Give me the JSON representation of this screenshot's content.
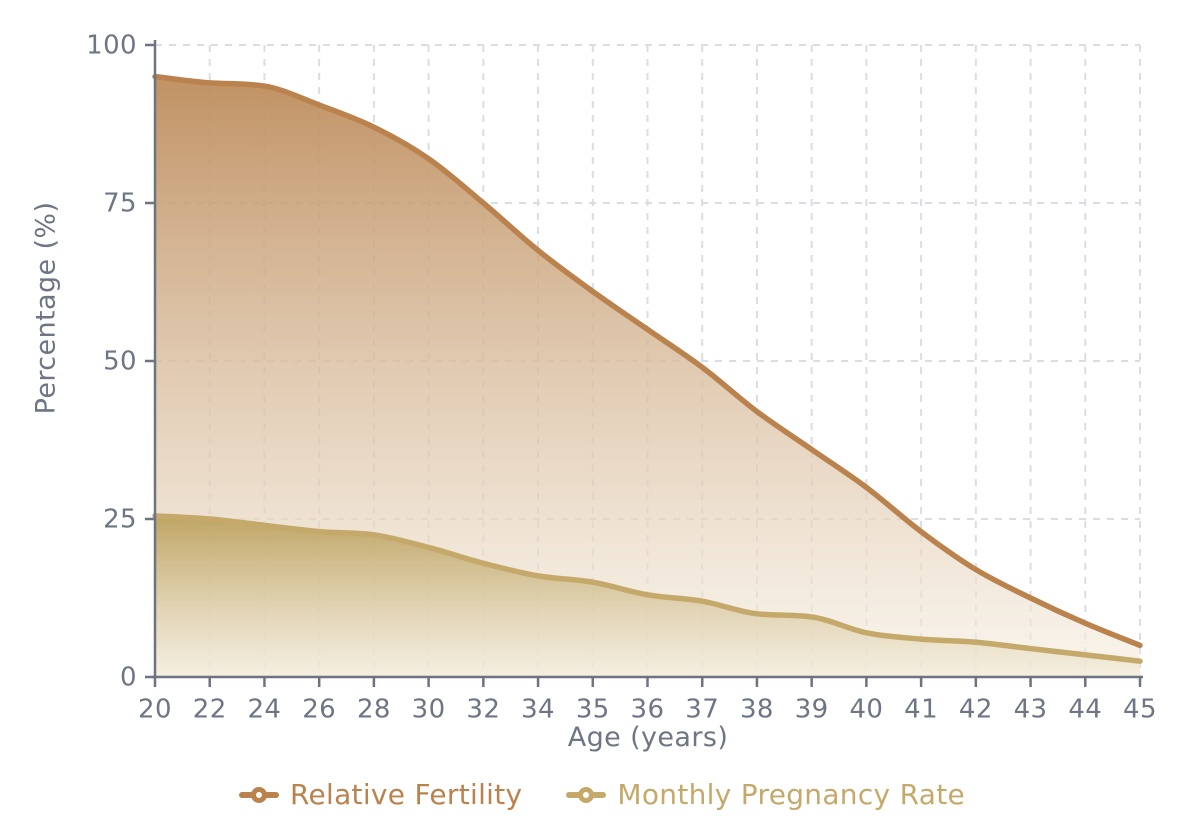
{
  "chart_data": {
    "type": "area",
    "title": "",
    "xlabel": "Age (years)",
    "ylabel": "Percentage (%)",
    "categories": [
      "20",
      "22",
      "24",
      "26",
      "28",
      "30",
      "32",
      "34",
      "35",
      "36",
      "37",
      "38",
      "39",
      "40",
      "41",
      "42",
      "43",
      "44",
      "45"
    ],
    "y_tick_labels": [
      "0",
      "25",
      "50",
      "75",
      "100"
    ],
    "y_tick_values": [
      0,
      25,
      50,
      75,
      100
    ],
    "ylim": [
      0,
      100
    ],
    "grid": "dashed, vertical at every age category and horizontal at each y tick",
    "legend_position": "bottom-center",
    "curve_style": "smooth monotone",
    "series": [
      {
        "name": "Relative Fertility",
        "color": "#ba824d",
        "fill_top": "#bd8c5b",
        "fill_bottom": "#f6efe2",
        "values": [
          95,
          94,
          93.5,
          90.5,
          87,
          82,
          75,
          67.5,
          61,
          55,
          49,
          42,
          36,
          30,
          23,
          17,
          12.5,
          8.5,
          5
        ]
      },
      {
        "name": "Monthly Pregnancy Rate",
        "color": "#c5a96a",
        "fill_top": "#bca15e",
        "fill_bottom": "#f2ebd9",
        "values": [
          25.5,
          25,
          24,
          23,
          22.5,
          20.5,
          18,
          16,
          15,
          13,
          12,
          10,
          9.5,
          7,
          6,
          5.5,
          4.5,
          3.5,
          2.5
        ]
      }
    ]
  },
  "style": {
    "axis_color": "#6d7380",
    "tick_text_color": "#6e7585",
    "grid_color": "#dadde4",
    "background": "#ffffff"
  }
}
